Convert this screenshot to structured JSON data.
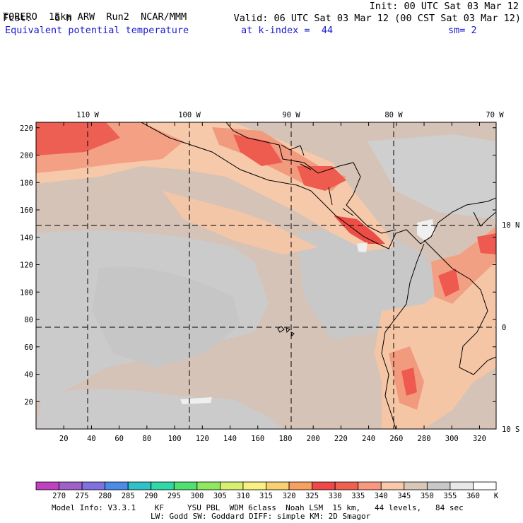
{
  "header": {
    "model": "TORERO",
    "resolution": "15km ARW",
    "run": "Run2",
    "org": "NCAR/MMM",
    "init": "Init: 00 UTC Sat 03 Mar 12",
    "fcst_label": "Fcst:",
    "fcst_value": "6 h",
    "valid": "Valid: 06 UTC Sat 03 Mar 12 (00 CST Sat 03 Mar 12)",
    "field": "Equivalent potential temperature",
    "level": "at k-index =  44",
    "smooth": "sm= 2"
  },
  "map": {
    "top_labels": [
      "110 W",
      "100 W",
      "90 W",
      "80 W",
      "70 W"
    ],
    "right_labels": [
      "10 N",
      "0",
      "10 S"
    ],
    "y_ticks": [
      220,
      200,
      180,
      160,
      140,
      120,
      100,
      80,
      60,
      40,
      20
    ],
    "x_ticks": [
      20,
      40,
      60,
      80,
      100,
      120,
      140,
      160,
      180,
      200,
      220,
      240,
      260,
      280,
      300,
      320
    ]
  },
  "colorbar": {
    "labels": [
      "270",
      "275",
      "280",
      "285",
      "290",
      "295",
      "300",
      "305",
      "310",
      "315",
      "320",
      "325",
      "330",
      "335",
      "340",
      "345",
      "350",
      "355",
      "360"
    ],
    "unit": "K",
    "colors": [
      "#c040c0",
      "#a060c8",
      "#8070e0",
      "#4a8ce8",
      "#30c0c8",
      "#30d8a8",
      "#50e070",
      "#90e860",
      "#d8f070",
      "#f8f080",
      "#f8d070",
      "#f8a060",
      "#f04848",
      "#f06050",
      "#f89880",
      "#f8c8a8",
      "#d8c8b8",
      "#c8c8c8",
      "#e8e8e8",
      "#ffffff"
    ]
  },
  "footer": {
    "line1": "Model Info: V3.3.1    KF     YSU PBL  WDM 6class  Noah LSM  15 km,   44 levels,   84 sec",
    "line2": "LW: Godd SW: Goddard DIFF: simple KM: 2D Smagor"
  },
  "palette": {
    "ocean_tan": "#d8c4b8",
    "ocean_grey": "#cacaca",
    "warm_peach": "#f6c7a8",
    "salmon": "#f7a084",
    "red": "#ef5a50",
    "white": "#f4f4f4"
  }
}
